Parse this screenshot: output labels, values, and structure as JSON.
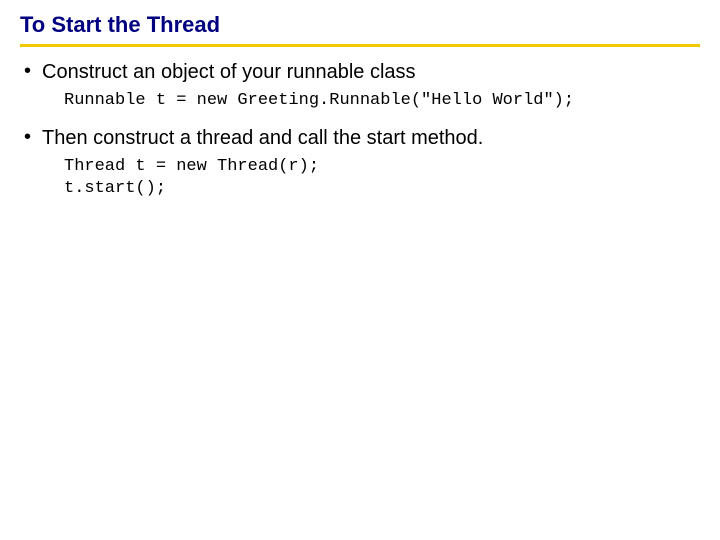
{
  "slide": {
    "title": "To Start the Thread",
    "title_color": "#000080",
    "underline_color": "#f2c800",
    "background_color": "#ffffff",
    "body_font_family": "Arial",
    "code_font_family": "Courier New",
    "title_fontsize": 22,
    "bullet_fontsize": 20,
    "code_fontsize": 17,
    "items": [
      {
        "bullet": "Construct an object of your runnable class",
        "code": "Runnable t = new Greeting.Runnable(\"Hello World\");"
      },
      {
        "bullet": "Then construct a thread and call the start method.",
        "code": "Thread t = new Thread(r);\nt.start();"
      }
    ]
  }
}
